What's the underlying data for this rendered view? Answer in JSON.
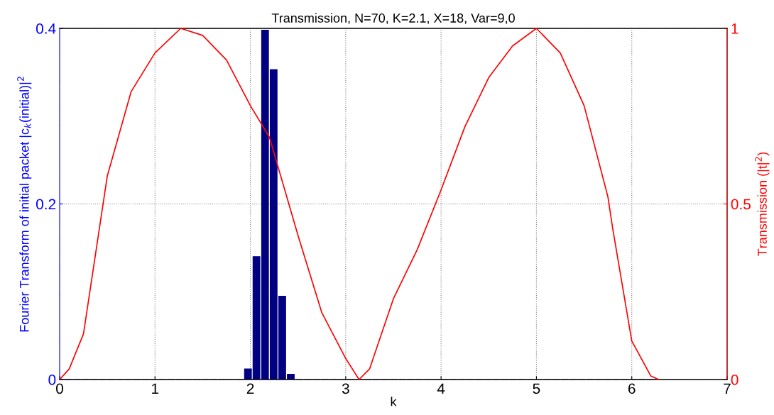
{
  "chart_data": {
    "type": "bar",
    "title": "Transmission, N=70, K=2.1, X=18, Var=9,0",
    "xlabel": "k",
    "ylabel": "Fourier Transform of initial packet |c$_{k}$(initial)|$^{2}$",
    "y2label": "Transmission (|t|$^{2}$)",
    "xlim": [
      0,
      7
    ],
    "xticks": [
      0,
      1,
      2,
      3,
      4,
      5,
      6,
      7
    ],
    "ylim": [
      0,
      0.4
    ],
    "yticks": [
      0,
      0.2,
      0.4
    ],
    "y2lim": [
      0,
      1
    ],
    "y2ticks": [
      0,
      0.5,
      1
    ],
    "grid": true,
    "series": [
      {
        "axis": "y",
        "color": "#000080",
        "x": [
          0,
          0.09,
          0.18,
          0.269,
          0.359,
          0.449,
          0.539,
          0.628,
          0.718,
          0.808,
          0.898,
          0.987,
          1.077,
          1.167,
          1.257,
          1.346,
          1.436,
          1.526,
          1.616,
          1.706,
          1.795,
          1.885,
          1.975,
          2.064,
          2.154,
          2.244,
          2.334,
          2.424,
          2.513,
          2.603,
          2.693,
          2.783,
          2.873,
          2.962,
          3.052,
          3.142,
          3.232,
          3.321,
          3.411,
          3.501,
          3.59,
          3.68,
          3.77,
          3.86,
          3.95,
          4.039,
          4.129,
          4.219,
          4.309,
          4.398,
          4.488,
          4.578,
          4.668,
          4.757,
          4.847,
          4.937,
          5.027,
          5.116,
          5.206,
          5.296,
          5.386,
          5.475,
          5.565,
          5.655,
          5.745,
          5.834,
          5.924,
          6.014,
          6.104,
          6.194
        ],
        "values": [
          0,
          0,
          0,
          0,
          0,
          0,
          0,
          0,
          0,
          0,
          0,
          0,
          0,
          0,
          0,
          0,
          0,
          0,
          0,
          0,
          0,
          0,
          0.012,
          0.14,
          0.398,
          0.353,
          0.095,
          0.006,
          0,
          0,
          0,
          0,
          0,
          0,
          0,
          0,
          0,
          0,
          0,
          0,
          0,
          0,
          0,
          0,
          0,
          0,
          0,
          0,
          0,
          0,
          0,
          0,
          0,
          0,
          0,
          0,
          0,
          0,
          0,
          0,
          0,
          0,
          0,
          0,
          0,
          0,
          0,
          0,
          0,
          0
        ]
      },
      {
        "type": "line",
        "axis": "y2",
        "color": "#ff0000",
        "x": [
          0,
          0.1,
          0.25,
          0.5,
          0.75,
          1,
          1.27,
          1.5,
          1.75,
          2,
          2.2,
          2.5,
          2.75,
          3,
          3.14,
          3.25,
          3.5,
          3.75,
          4,
          4.25,
          4.5,
          4.75,
          5,
          5.25,
          5.5,
          5.75,
          5.8,
          6,
          6.2,
          6.28
        ],
        "values": [
          0,
          0.03,
          0.13,
          0.58,
          0.82,
          0.93,
          1,
          0.98,
          0.91,
          0.78,
          0.69,
          0.41,
          0.19,
          0.06,
          0,
          0.03,
          0.23,
          0.37,
          0.54,
          0.72,
          0.86,
          0.95,
          1,
          0.93,
          0.78,
          0.52,
          0.43,
          0.11,
          0.01,
          0
        ]
      }
    ]
  }
}
